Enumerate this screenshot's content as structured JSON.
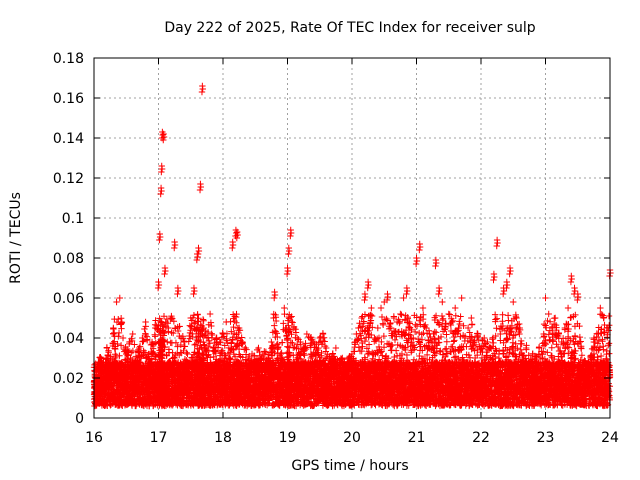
{
  "chart_data": {
    "type": "scatter",
    "title": "Day 222 of 2025, Rate Of TEC Index for receiver sulp",
    "xlabel": "GPS time / hours",
    "ylabel": "ROTI / TECUs",
    "xlim": [
      16,
      24
    ],
    "ylim": [
      0,
      0.18
    ],
    "x_ticks": [
      "16",
      "17",
      "18",
      "19",
      "20",
      "21",
      "22",
      "23",
      "24"
    ],
    "y_ticks": [
      "0",
      "0.02",
      "0.04",
      "0.06",
      "0.08",
      "0.1",
      "0.12",
      "0.14",
      "0.16",
      "0.18"
    ],
    "grid": true,
    "marker": "+",
    "series": [
      {
        "name": "ROTI",
        "color": "#ff0000",
        "x": [
          16.0,
          16.05,
          16.1,
          16.15,
          16.2,
          16.25,
          16.3,
          16.35,
          16.4,
          16.45,
          16.5,
          16.55,
          16.6,
          16.65,
          16.7,
          16.75,
          16.8,
          16.85,
          16.9,
          16.95,
          17.0,
          17.02,
          17.04,
          17.05,
          17.06,
          17.08,
          17.1,
          17.15,
          17.2,
          17.25,
          17.3,
          17.35,
          17.4,
          17.45,
          17.5,
          17.55,
          17.6,
          17.62,
          17.65,
          17.68,
          17.7,
          17.75,
          17.8,
          17.85,
          17.9,
          17.95,
          18.0,
          18.05,
          18.1,
          18.15,
          18.2,
          18.22,
          18.25,
          18.3,
          18.35,
          18.4,
          18.45,
          18.5,
          18.55,
          18.6,
          18.65,
          18.7,
          18.75,
          18.8,
          18.85,
          18.9,
          18.95,
          19.0,
          19.02,
          19.05,
          19.1,
          19.15,
          19.2,
          19.25,
          19.3,
          19.35,
          19.4,
          19.45,
          19.5,
          19.55,
          19.6,
          19.65,
          19.7,
          19.75,
          19.8,
          19.85,
          19.9,
          19.95,
          20.0,
          20.05,
          20.1,
          20.15,
          20.2,
          20.25,
          20.3,
          20.35,
          20.4,
          20.45,
          20.5,
          20.55,
          20.6,
          20.65,
          20.7,
          20.75,
          20.8,
          20.85,
          20.9,
          20.95,
          21.0,
          21.05,
          21.1,
          21.15,
          21.2,
          21.25,
          21.3,
          21.35,
          21.4,
          21.45,
          21.5,
          21.55,
          21.6,
          21.65,
          21.7,
          21.75,
          21.8,
          21.85,
          21.9,
          21.95,
          22.0,
          22.05,
          22.1,
          22.15,
          22.2,
          22.25,
          22.3,
          22.35,
          22.4,
          22.45,
          22.5,
          22.55,
          22.6,
          22.65,
          22.7,
          22.75,
          22.8,
          22.85,
          22.9,
          22.95,
          23.0,
          23.05,
          23.1,
          23.15,
          23.2,
          23.25,
          23.3,
          23.35,
          23.4,
          23.45,
          23.5,
          23.55,
          23.6,
          23.65,
          23.7,
          23.75,
          23.8,
          23.85,
          23.9,
          23.95,
          24.0
        ],
        "y": [
          0.018,
          0.025,
          0.03,
          0.022,
          0.035,
          0.028,
          0.045,
          0.058,
          0.06,
          0.04,
          0.032,
          0.038,
          0.042,
          0.03,
          0.035,
          0.04,
          0.048,
          0.032,
          0.038,
          0.045,
          0.068,
          0.092,
          0.115,
          0.126,
          0.143,
          0.142,
          0.075,
          0.045,
          0.05,
          0.088,
          0.065,
          0.04,
          0.038,
          0.032,
          0.05,
          0.065,
          0.082,
          0.085,
          0.117,
          0.166,
          0.045,
          0.04,
          0.052,
          0.035,
          0.04,
          0.038,
          0.042,
          0.048,
          0.03,
          0.088,
          0.094,
          0.093,
          0.045,
          0.038,
          0.035,
          0.03,
          0.032,
          0.028,
          0.035,
          0.03,
          0.032,
          0.03,
          0.038,
          0.063,
          0.035,
          0.03,
          0.055,
          0.075,
          0.085,
          0.094,
          0.045,
          0.04,
          0.038,
          0.035,
          0.042,
          0.04,
          0.038,
          0.035,
          0.04,
          0.042,
          0.035,
          0.03,
          0.032,
          0.035,
          0.028,
          0.03,
          0.025,
          0.03,
          0.032,
          0.038,
          0.045,
          0.05,
          0.062,
          0.068,
          0.055,
          0.04,
          0.045,
          0.055,
          0.058,
          0.062,
          0.045,
          0.05,
          0.048,
          0.052,
          0.06,
          0.065,
          0.045,
          0.04,
          0.08,
          0.087,
          0.055,
          0.045,
          0.042,
          0.035,
          0.079,
          0.065,
          0.058,
          0.045,
          0.052,
          0.048,
          0.055,
          0.045,
          0.06,
          0.04,
          0.045,
          0.05,
          0.038,
          0.042,
          0.035,
          0.04,
          0.038,
          0.035,
          0.072,
          0.089,
          0.042,
          0.065,
          0.068,
          0.075,
          0.058,
          0.05,
          0.045,
          0.03,
          0.035,
          0.028,
          0.032,
          0.03,
          0.035,
          0.032,
          0.06,
          0.052,
          0.045,
          0.05,
          0.042,
          0.038,
          0.045,
          0.055,
          0.071,
          0.065,
          0.062,
          0.035,
          0.028,
          0.025,
          0.03,
          0.038,
          0.042,
          0.055,
          0.05,
          0.045,
          0.074
        ]
      }
    ]
  }
}
